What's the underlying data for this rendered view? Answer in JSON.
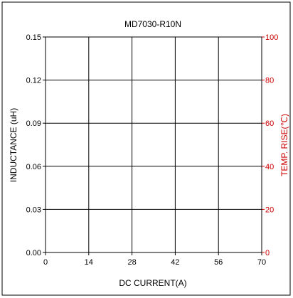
{
  "chart_data": {
    "type": "line",
    "title": "MD7030-R10N",
    "xlabel": "DC CURRENT(A)",
    "ylabel": "INDUCTANCE (uH)",
    "y2label": "TEMP. RISE(℃)",
    "xlim": [
      0,
      70
    ],
    "ylim": [
      0,
      0.15
    ],
    "y2lim": [
      0,
      100
    ],
    "x_ticks": [
      "0",
      "14",
      "28",
      "42",
      "56",
      "70"
    ],
    "y_ticks": [
      "0.00",
      "0.03",
      "0.06",
      "0.09",
      "0.12",
      "0.15"
    ],
    "y2_ticks": [
      "0",
      "20",
      "40",
      "60",
      "80",
      "100"
    ],
    "grid": true,
    "series": [],
    "colors": {
      "primary_axis": "#000000",
      "secondary_axis": "#cc0000",
      "grid": "#000000"
    }
  }
}
